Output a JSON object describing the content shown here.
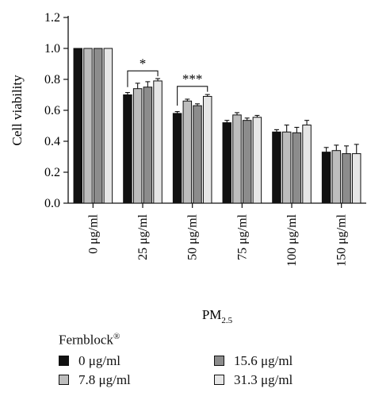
{
  "chart_data": {
    "type": "bar",
    "ylabel": "Cell viability",
    "xlabel": "PM",
    "xlabel_sub": "2.5",
    "ylim": [
      0,
      1.2
    ],
    "y_ticks": [
      "0.0",
      "0.2",
      "0.4",
      "0.6",
      "0.8",
      "1.0",
      "1.2"
    ],
    "categories": [
      "0 μg/ml",
      "25 μg/ml",
      "50 μg/ml",
      "75 μg/ml",
      "100 μg/ml",
      "150 μg/ml"
    ],
    "series": [
      {
        "name": "0 μg/ml",
        "color": "#111111",
        "values": [
          1.0,
          0.7,
          0.58,
          0.52,
          0.46,
          0.33
        ],
        "errors": [
          0.0,
          0.015,
          0.012,
          0.015,
          0.015,
          0.03
        ]
      },
      {
        "name": "7.8 μg/ml",
        "color": "#bdbdbd",
        "values": [
          1.0,
          0.74,
          0.66,
          0.57,
          0.46,
          0.34
        ],
        "errors": [
          0.0,
          0.035,
          0.012,
          0.015,
          0.045,
          0.035
        ]
      },
      {
        "name": "15.6 μg/ml",
        "color": "#8c8c8c",
        "values": [
          1.0,
          0.75,
          0.63,
          0.535,
          0.455,
          0.32
        ],
        "errors": [
          0.0,
          0.035,
          0.012,
          0.015,
          0.035,
          0.05
        ]
      },
      {
        "name": "31.3 μg/ml",
        "color": "#e6e6e6",
        "values": [
          1.0,
          0.79,
          0.69,
          0.555,
          0.505,
          0.32
        ],
        "errors": [
          0.0,
          0.015,
          0.012,
          0.012,
          0.03,
          0.06
        ]
      }
    ],
    "significance": [
      {
        "group": 1,
        "from_series": 0,
        "to_series": 3,
        "label": "*",
        "y": 0.855
      },
      {
        "group": 2,
        "from_series": 0,
        "to_series": 3,
        "label": "***",
        "y": 0.755
      }
    ]
  },
  "legend": {
    "title": "Fernblock",
    "title_sup": "®",
    "items": [
      {
        "label": "0 μg/ml",
        "color": "#111111"
      },
      {
        "label": "15.6 μg/ml",
        "color": "#8c8c8c"
      },
      {
        "label": "7.8 μg/ml",
        "color": "#bdbdbd"
      },
      {
        "label": "31.3 μg/ml",
        "color": "#e6e6e6"
      }
    ]
  }
}
